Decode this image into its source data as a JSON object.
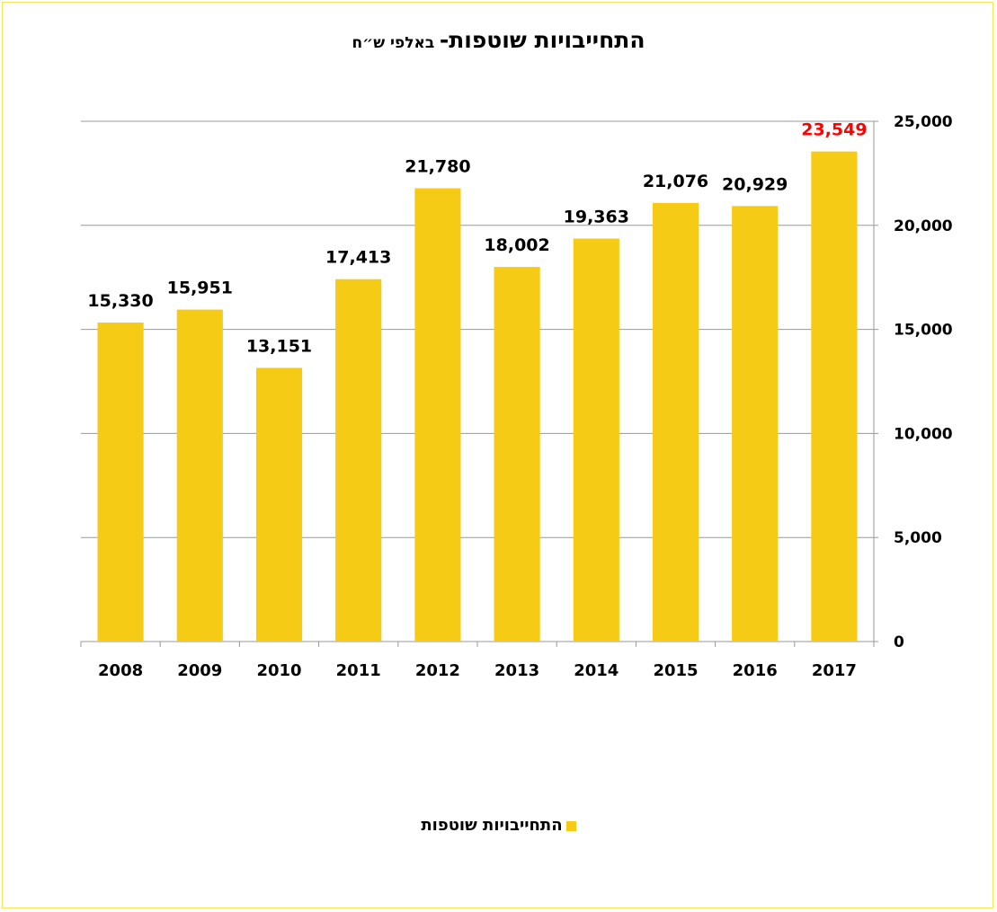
{
  "chart_data": {
    "type": "bar",
    "title": "התחייבויות שוטפות-",
    "subtitle": "באלפי ש״ח",
    "categories": [
      "2008",
      "2009",
      "2010",
      "2011",
      "2012",
      "2013",
      "2014",
      "2015",
      "2016",
      "2017"
    ],
    "series": [
      {
        "name": "התחייבויות שוטפות",
        "values": [
          15330,
          15951,
          13151,
          17413,
          21780,
          18002,
          19363,
          21076,
          20929,
          23549
        ]
      }
    ],
    "data_labels": [
      "15,330",
      "15,951",
      "13,151",
      "17,413",
      "21,780",
      "18,002",
      "19,363",
      "21,076",
      "20,929",
      "23,549"
    ],
    "highlighted_label_index": 9,
    "ylim": [
      0,
      25000
    ],
    "yticks": [
      "0",
      "5,000",
      "10,000",
      "15,000",
      "20,000",
      "25,000"
    ],
    "ytick_values": [
      0,
      5000,
      10000,
      15000,
      20000,
      25000
    ],
    "y_axis_side": "right",
    "grid": true,
    "legend_position": "bottom",
    "xlabel": "",
    "ylabel": "",
    "colors": {
      "bar": "#f6cb16",
      "highlight_label": "#ff0000",
      "grid": "#999999",
      "border": "#f2e85a"
    }
  }
}
